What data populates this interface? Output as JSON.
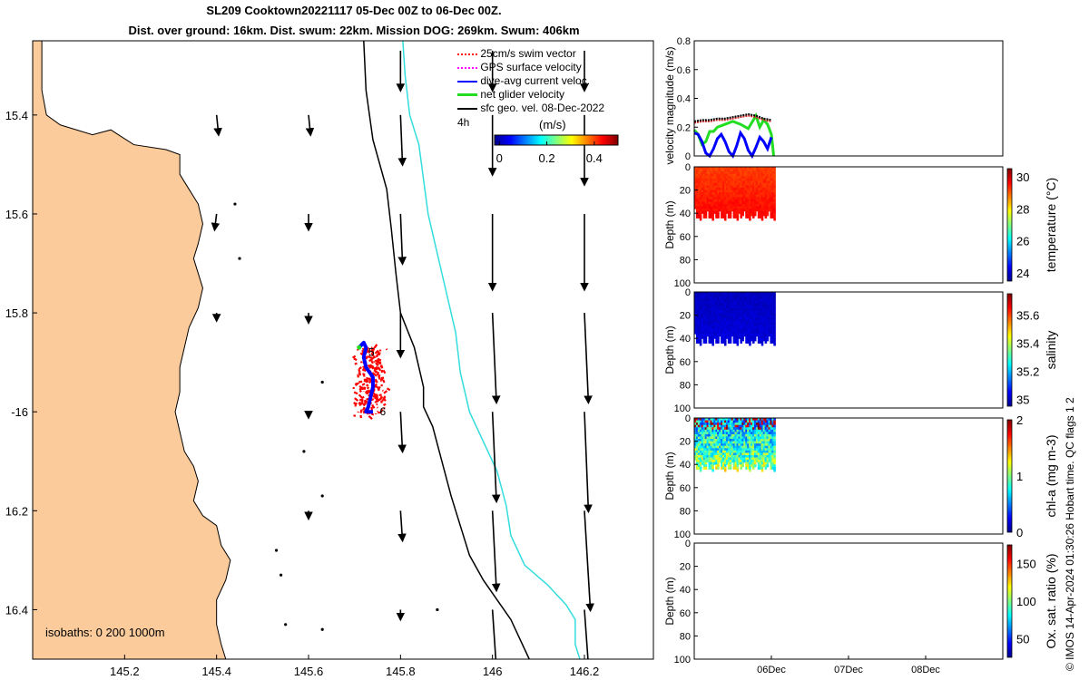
{
  "title_line1": "SL209 Cooktown20221117 05-Dec 00Z to 06-Dec 00Z.",
  "title_line2": "Dist. over ground: 16km. Dist. swum: 22km. Mission DOG: 269km. Swum: 406km",
  "credit": "© IMOS 14-Apr-2024 01:30:26 Hobart time. QC flags 1  2",
  "colors": {
    "land": "#FBCB9B",
    "isobath_200": "#000000",
    "isobath_1000": "#33DDDD",
    "swim": "#FF0000",
    "gps": "#FF00FF",
    "dive_avg": "#0000FF",
    "net": "#22DD22",
    "sfc": "#000000"
  },
  "chart_data": [
    {
      "id": "map",
      "type": "scatter",
      "title": "",
      "xlabel": "",
      "ylabel": "",
      "xlim": [
        145.0,
        146.35
      ],
      "ylim": [
        -16.5,
        -15.25
      ],
      "xticks": [
        145.2,
        145.4,
        145.6,
        145.8,
        146,
        146.2
      ],
      "xtick_labels": [
        "145.2",
        "145.4",
        "145.6",
        "145.8",
        "146",
        "146.2"
      ],
      "yticks": [
        -15.4,
        -15.6,
        -15.8,
        -16,
        -16.2,
        -16.4
      ],
      "ytick_labels": [
        "15.4",
        "15.6",
        "15.8",
        "-16",
        "16.2",
        "16.4"
      ],
      "legend_position": "top-right",
      "legend": [
        {
          "label": "25cm/s swim vector",
          "color": "#FF0000",
          "style": "dotted"
        },
        {
          "label": "GPS surface velocity",
          "color": "#FF00FF",
          "style": "dotted"
        },
        {
          "label": "dive-avg current veloc.",
          "color": "#0000FF",
          "style": "solid"
        },
        {
          "label": "net glider velocity",
          "color": "#22DD22",
          "style": "solid"
        },
        {
          "label": "sfc geo. vel. 08-Dec-2022",
          "color": "#000000",
          "style": "solid"
        }
      ],
      "duration_label": "4h",
      "colorbar": {
        "title": "(m/s)",
        "ticks": [
          0,
          0.2,
          0.4
        ],
        "tick_labels": [
          "0",
          "0.2",
          "0.4"
        ],
        "range": [
          -0.02,
          0.5
        ]
      },
      "isobath_label": "isobaths: 0   200  1000m",
      "coastline": [
        [
          145.0,
          -15.25
        ],
        [
          145.02,
          -15.25
        ],
        [
          145.02,
          -15.35
        ],
        [
          145.03,
          -15.4
        ],
        [
          145.06,
          -15.42
        ],
        [
          145.13,
          -15.44
        ],
        [
          145.17,
          -15.43
        ],
        [
          145.22,
          -15.46
        ],
        [
          145.29,
          -15.47
        ],
        [
          145.32,
          -15.48
        ],
        [
          145.32,
          -15.52
        ],
        [
          145.34,
          -15.55
        ],
        [
          145.36,
          -15.58
        ],
        [
          145.37,
          -15.62
        ],
        [
          145.36,
          -15.66
        ],
        [
          145.35,
          -15.69
        ],
        [
          145.36,
          -15.72
        ],
        [
          145.37,
          -15.75
        ],
        [
          145.36,
          -15.79
        ],
        [
          145.34,
          -15.83
        ],
        [
          145.33,
          -15.87
        ],
        [
          145.32,
          -15.91
        ],
        [
          145.32,
          -15.96
        ],
        [
          145.31,
          -16.0
        ],
        [
          145.32,
          -16.04
        ],
        [
          145.33,
          -16.08
        ],
        [
          145.35,
          -16.11
        ],
        [
          145.36,
          -16.14
        ],
        [
          145.35,
          -16.18
        ],
        [
          145.37,
          -16.21
        ],
        [
          145.4,
          -16.23
        ],
        [
          145.41,
          -16.27
        ],
        [
          145.43,
          -16.3
        ],
        [
          145.42,
          -16.34
        ],
        [
          145.4,
          -16.38
        ],
        [
          145.4,
          -16.43
        ],
        [
          145.41,
          -16.47
        ],
        [
          145.42,
          -16.5
        ],
        [
          145.0,
          -16.5
        ]
      ],
      "isobath_200": [
        [
          145.72,
          -15.25
        ],
        [
          145.725,
          -15.35
        ],
        [
          145.74,
          -15.45
        ],
        [
          145.77,
          -15.55
        ],
        [
          145.78,
          -15.63
        ],
        [
          145.79,
          -15.72
        ],
        [
          145.8,
          -15.8
        ],
        [
          145.83,
          -15.87
        ],
        [
          145.85,
          -15.95
        ],
        [
          145.85,
          -15.99
        ],
        [
          145.87,
          -16.03
        ],
        [
          145.89,
          -16.1
        ],
        [
          145.91,
          -16.17
        ],
        [
          145.93,
          -16.23
        ],
        [
          145.95,
          -16.29
        ],
        [
          145.98,
          -16.34
        ],
        [
          146.01,
          -16.38
        ],
        [
          146.04,
          -16.42
        ],
        [
          146.06,
          -16.46
        ],
        [
          146.08,
          -16.5
        ]
      ],
      "isobath_1000": [
        [
          145.805,
          -15.25
        ],
        [
          145.81,
          -15.32
        ],
        [
          145.82,
          -15.4
        ],
        [
          145.84,
          -15.46
        ],
        [
          145.85,
          -15.53
        ],
        [
          145.86,
          -15.6
        ],
        [
          145.88,
          -15.68
        ],
        [
          145.9,
          -15.76
        ],
        [
          145.92,
          -15.84
        ],
        [
          145.93,
          -15.92
        ],
        [
          145.95,
          -16.0
        ],
        [
          145.98,
          -16.06
        ],
        [
          146.01,
          -16.12
        ],
        [
          146.03,
          -16.19
        ],
        [
          146.04,
          -16.25
        ],
        [
          146.07,
          -16.31
        ],
        [
          146.12,
          -16.35
        ],
        [
          146.16,
          -16.39
        ],
        [
          146.18,
          -16.42
        ],
        [
          146.18,
          -16.47
        ],
        [
          146.19,
          -16.5
        ]
      ],
      "islands": [
        [
          145.44,
          -15.58
        ],
        [
          145.45,
          -15.69
        ],
        [
          145.63,
          -15.94
        ],
        [
          145.59,
          -16.08
        ],
        [
          145.63,
          -16.17
        ],
        [
          145.53,
          -16.28
        ],
        [
          145.54,
          -16.33
        ],
        [
          145.88,
          -16.4
        ],
        [
          145.55,
          -16.43
        ],
        [
          145.63,
          -16.44
        ]
      ],
      "track": [
        [
          145.71,
          -15.87
        ],
        [
          145.72,
          -15.86
        ],
        [
          145.725,
          -15.87
        ],
        [
          145.72,
          -15.89
        ],
        [
          145.725,
          -15.91
        ],
        [
          145.74,
          -15.93
        ],
        [
          145.74,
          -15.95
        ],
        [
          145.735,
          -15.97
        ],
        [
          145.73,
          -15.99
        ],
        [
          145.725,
          -16.0
        ],
        [
          145.74,
          -16.0
        ]
      ],
      "track_labels": [
        {
          "text": "5",
          "x": 145.73,
          "y": -15.88
        },
        {
          "text": "6",
          "x": 145.755,
          "y": -16.0
        }
      ],
      "swim_cloud_center": [
        145.73,
        -15.94
      ],
      "vectors": [
        {
          "x": 145.4,
          "y": -15.4,
          "u": 0.01,
          "v": -0.1
        },
        {
          "x": 145.6,
          "y": -15.4,
          "u": 0.01,
          "v": -0.1
        },
        {
          "x": 145.8,
          "y": -15.4,
          "u": 0.01,
          "v": -0.25
        },
        {
          "x": 146.0,
          "y": -15.4,
          "u": 0.0,
          "v": -0.3
        },
        {
          "x": 146.2,
          "y": -15.4,
          "u": 0.0,
          "v": -0.35
        },
        {
          "x": 145.8,
          "y": -15.27,
          "u": 0.0,
          "v": -0.2
        },
        {
          "x": 146.0,
          "y": -15.27,
          "u": 0.0,
          "v": -0.2
        },
        {
          "x": 146.2,
          "y": -15.27,
          "u": 0.0,
          "v": -0.2
        },
        {
          "x": 145.4,
          "y": -15.6,
          "u": -0.01,
          "v": -0.08
        },
        {
          "x": 145.6,
          "y": -15.6,
          "u": 0.0,
          "v": -0.08
        },
        {
          "x": 145.8,
          "y": -15.6,
          "u": 0.01,
          "v": -0.25
        },
        {
          "x": 146.0,
          "y": -15.6,
          "u": 0.0,
          "v": -0.38
        },
        {
          "x": 146.2,
          "y": -15.6,
          "u": 0.0,
          "v": -0.38
        },
        {
          "x": 145.4,
          "y": -15.8,
          "u": 0.0,
          "v": -0.04
        },
        {
          "x": 145.6,
          "y": -15.8,
          "u": 0.0,
          "v": -0.05
        },
        {
          "x": 145.8,
          "y": -15.8,
          "u": 0.0,
          "v": -0.22
        },
        {
          "x": 146.0,
          "y": -15.8,
          "u": 0.02,
          "v": -0.45
        },
        {
          "x": 146.2,
          "y": -15.8,
          "u": 0.02,
          "v": -0.45
        },
        {
          "x": 145.6,
          "y": -16.0,
          "u": 0.0,
          "v": -0.03
        },
        {
          "x": 145.8,
          "y": -16.0,
          "u": 0.01,
          "v": -0.2
        },
        {
          "x": 146.0,
          "y": -16.0,
          "u": 0.02,
          "v": -0.45
        },
        {
          "x": 146.2,
          "y": -16.0,
          "u": 0.02,
          "v": -0.5
        },
        {
          "x": 145.6,
          "y": -16.2,
          "u": 0.0,
          "v": -0.04
        },
        {
          "x": 145.8,
          "y": -16.2,
          "u": 0.01,
          "v": -0.15
        },
        {
          "x": 146.0,
          "y": -16.2,
          "u": 0.02,
          "v": -0.4
        },
        {
          "x": 146.2,
          "y": -16.2,
          "u": 0.03,
          "v": -0.5
        },
        {
          "x": 145.8,
          "y": -16.4,
          "u": 0.0,
          "v": -0.05
        },
        {
          "x": 146.0,
          "y": -16.4,
          "u": 0.02,
          "v": -0.3
        },
        {
          "x": 146.2,
          "y": -16.4,
          "u": 0.03,
          "v": -0.42
        }
      ]
    },
    {
      "id": "velocity",
      "type": "line",
      "title": "",
      "xlabel": "",
      "ylabel": "velocity magnitude (m/s)",
      "xlim": [
        0,
        4
      ],
      "ylim": [
        0,
        0.8
      ],
      "yticks": [
        0,
        0.2,
        0.4,
        0.6,
        0.8
      ],
      "ytick_labels": [
        "0",
        "0.2",
        "0.4",
        "0.6",
        "0.8"
      ],
      "series": [
        {
          "name": "net glider velocity",
          "color": "#22DD22",
          "x": [
            0,
            0.05,
            0.1,
            0.15,
            0.2,
            0.25,
            0.3,
            0.35,
            0.4,
            0.5,
            0.6,
            0.7,
            0.8,
            0.85,
            0.9,
            0.95,
            1.0,
            1.03
          ],
          "y": [
            0.18,
            0.15,
            0.08,
            0.1,
            0.17,
            0.17,
            0.2,
            0.21,
            0.22,
            0.24,
            0.22,
            0.19,
            0.28,
            0.2,
            0.25,
            0.22,
            0.15,
            0.0
          ]
        },
        {
          "name": "dive-avg current veloc.",
          "color": "#0000FF",
          "x": [
            0,
            0.05,
            0.1,
            0.15,
            0.2,
            0.25,
            0.3,
            0.35,
            0.4,
            0.45,
            0.5,
            0.55,
            0.6,
            0.65,
            0.7,
            0.75,
            0.8,
            0.85,
            0.9,
            0.95,
            1.0
          ],
          "y": [
            0.16,
            0.15,
            0.1,
            0.02,
            0.0,
            0.05,
            0.12,
            0.15,
            0.1,
            0.03,
            0.0,
            0.07,
            0.16,
            0.12,
            0.04,
            0.0,
            0.06,
            0.13,
            0.1,
            0.05,
            0.13
          ]
        },
        {
          "name": "25cm/s swim vector",
          "color": "#CC2222",
          "x": [
            0,
            0.1,
            0.2,
            0.3,
            0.4,
            0.5,
            0.6,
            0.7,
            0.8,
            0.9,
            1.0
          ],
          "y": [
            0.23,
            0.24,
            0.24,
            0.25,
            0.25,
            0.26,
            0.27,
            0.28,
            0.27,
            0.25,
            0.24
          ]
        },
        {
          "name": "GPS surface velocity",
          "color": "#000000",
          "x": [
            0,
            0.1,
            0.2,
            0.3,
            0.4,
            0.5,
            0.6,
            0.7,
            0.8,
            0.9,
            1.0
          ],
          "y": [
            0.24,
            0.25,
            0.25,
            0.26,
            0.26,
            0.27,
            0.28,
            0.29,
            0.28,
            0.26,
            0.25
          ]
        }
      ]
    },
    {
      "id": "temperature",
      "type": "heatmap",
      "ylabel": "Depth (m)",
      "cbar_label": "temperature (°C)",
      "ylim": [
        0,
        100
      ],
      "yticks": [
        0,
        20,
        40,
        60,
        80,
        100
      ],
      "ytick_labels": [
        "0",
        "20",
        "40",
        "60",
        "80",
        "100"
      ],
      "cbar_range": [
        23.5,
        30.5
      ],
      "cbar_ticks": [
        24,
        26,
        28,
        30
      ],
      "cbar_tick_labels": [
        "24",
        "26",
        "28",
        "30"
      ],
      "surface_value": 29.2,
      "deep_value": 29.6,
      "scatter": false
    },
    {
      "id": "salinity",
      "type": "heatmap",
      "ylabel": "Depth (m)",
      "cbar_label": "salinity",
      "ylim": [
        0,
        100
      ],
      "yticks": [
        0,
        20,
        40,
        60,
        80,
        100
      ],
      "ytick_labels": [
        "0",
        "20",
        "40",
        "60",
        "80",
        "100"
      ],
      "cbar_range": [
        34.95,
        35.75
      ],
      "cbar_ticks": [
        35,
        35.2,
        35.4,
        35.6
      ],
      "cbar_tick_labels": [
        "35",
        "35.2",
        "35.4",
        "35.6"
      ],
      "surface_value": 35.0,
      "deep_value": 35.02,
      "scatter": false
    },
    {
      "id": "chla",
      "type": "heatmap",
      "ylabel": "Depth (m)",
      "cbar_label": "chl-a (mg m-3)",
      "ylim": [
        0,
        100
      ],
      "yticks": [
        0,
        20,
        40,
        60,
        80,
        100
      ],
      "ytick_labels": [
        "0",
        "20",
        "40",
        "60",
        "80",
        "100"
      ],
      "cbar_range": [
        0,
        2
      ],
      "cbar_ticks": [
        0,
        1,
        2
      ],
      "cbar_tick_labels": [
        "0",
        "1",
        "2"
      ],
      "surface_value": 0.6,
      "deep_value": 1.0,
      "scatter": true
    },
    {
      "id": "oxygen",
      "type": "heatmap",
      "ylabel": "Depth (m)",
      "cbar_label": "Ox. sat. ratio (%)",
      "ylim": [
        0,
        100
      ],
      "yticks": [
        0,
        20,
        40,
        60,
        80,
        100
      ],
      "ytick_labels": [
        "0",
        "20",
        "40",
        "60",
        "80",
        "100"
      ],
      "cbar_range": [
        25,
        175
      ],
      "cbar_ticks": [
        50,
        100,
        150
      ],
      "cbar_tick_labels": [
        "50",
        "100",
        "150"
      ],
      "empty": true,
      "xticks": [
        1,
        2,
        3
      ],
      "xtick_labels": [
        "06Dec",
        "07Dec",
        "08Dec"
      ]
    }
  ]
}
